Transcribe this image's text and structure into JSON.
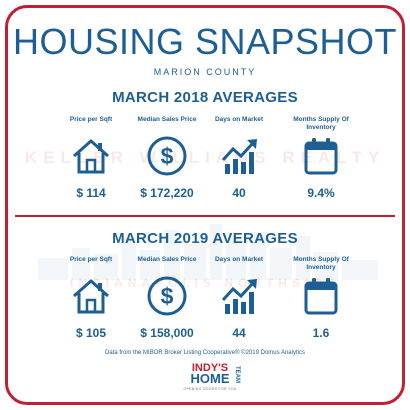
{
  "title": "HOUSING SNAPSHOT",
  "subtitle": "MARION COUNTY",
  "watermark_top": "KELLER WILLIAMS REALTY",
  "watermark_bottom": "INDIANAPOLIS NORTHSIDE",
  "sections": [
    {
      "title": "MARCH 2018 AVERAGES",
      "stats": [
        {
          "label": "Price per Sqft",
          "value": "$ 114",
          "icon": "house-icon"
        },
        {
          "label": "Median Sales Price",
          "value": "$ 172,220",
          "icon": "dollar-icon"
        },
        {
          "label": "Days on Market",
          "value": "40",
          "icon": "trend-up-icon"
        },
        {
          "label": "Months Supply Of Inventory",
          "value": "9.4%",
          "icon": "calendar-icon"
        }
      ]
    },
    {
      "title": "MARCH 2019 AVERAGES",
      "stats": [
        {
          "label": "Price per Sqft",
          "value": "$ 105",
          "icon": "house-icon"
        },
        {
          "label": "Median Sales Price",
          "value": "$ 158,000",
          "icon": "dollar-icon"
        },
        {
          "label": "Days on Market",
          "value": "44",
          "icon": "trend-up-icon"
        },
        {
          "label": "Months Supply Of Inventory",
          "value": "1.6",
          "icon": "calendar-icon"
        }
      ]
    }
  ],
  "source": "Data from the MIBOR Broker Listing Cooperative®  ©2019 Domus Analytics",
  "logo": {
    "line1": "INDY'S",
    "line2": "HOME",
    "side": "TEAM",
    "tagline": "OPENING DOORS FOR YOU"
  },
  "colors": {
    "primary": "#1d5f94",
    "accent": "#c21f32"
  }
}
